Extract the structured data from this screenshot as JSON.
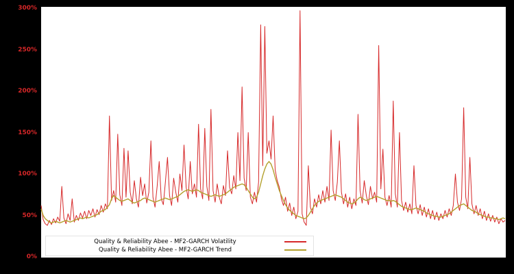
{
  "chart_data": {
    "type": "line",
    "title": "",
    "xlabel": "",
    "ylabel": "",
    "ylim": [
      0,
      300
    ],
    "grid": false,
    "legend_position": "lower-left-inside",
    "y_ticks": [
      0,
      50,
      100,
      150,
      200,
      250,
      300
    ],
    "y_tick_labels": [
      "0%",
      "50%",
      "100%",
      "150%",
      "200%",
      "250%",
      "300%"
    ],
    "colors": {
      "volatility": "#d62728",
      "trend": "#b3a02c",
      "tick_label": "#d62728",
      "plot_bg": "#ffffff",
      "page_bg": "#000000",
      "legend_bg": "#ffffff",
      "legend_text": "#000000"
    },
    "series": [
      {
        "name": "Quality & Reliability Abee - MF2-GARCH Volatility",
        "color_key": "volatility",
        "values": [
          62,
          45,
          40,
          38,
          44,
          39,
          46,
          41,
          48,
          43,
          85,
          47,
          40,
          52,
          44,
          70,
          42,
          50,
          44,
          53,
          47,
          55,
          46,
          56,
          50,
          58,
          48,
          57,
          51,
          62,
          54,
          64,
          58,
          170,
          68,
          80,
          66,
          148,
          75,
          62,
          131,
          72,
          128,
          78,
          64,
          92,
          70,
          60,
          96,
          74,
          88,
          65,
          78,
          140,
          72,
          60,
          85,
          115,
          70,
          63,
          90,
          120,
          74,
          62,
          95,
          78,
          66,
          100,
          80,
          135,
          84,
          70,
          115,
          76,
          88,
          72,
          160,
          82,
          70,
          155,
          85,
          68,
          178,
          80,
          66,
          88,
          72,
          64,
          86,
          74,
          128,
          84,
          76,
          98,
          82,
          150,
          92,
          205,
          95,
          80,
          150,
          72,
          64,
          78,
          66,
          90,
          280,
          110,
          278,
          125,
          140,
          118,
          170,
          105,
          92,
          84,
          70,
          62,
          72,
          55,
          65,
          50,
          60,
          46,
          55,
          297,
          52,
          42,
          38,
          110,
          60,
          52,
          70,
          60,
          75,
          64,
          80,
          66,
          85,
          68,
          153,
          80,
          68,
          90,
          140,
          78,
          64,
          76,
          60,
          72,
          58,
          70,
          62,
          172,
          80,
          65,
          92,
          74,
          63,
          85,
          70,
          78,
          66,
          255,
          82,
          130,
          72,
          62,
          74,
          60,
          188,
          76,
          60,
          150,
          68,
          56,
          66,
          54,
          64,
          52,
          110,
          62,
          52,
          63,
          50,
          60,
          48,
          58,
          46,
          56,
          45,
          54,
          44,
          52,
          46,
          56,
          48,
          58,
          50,
          62,
          100,
          66,
          56,
          70,
          180,
          72,
          58,
          120,
          64,
          52,
          62,
          50,
          58,
          46,
          55,
          44,
          52,
          43,
          50,
          42,
          48,
          40,
          46,
          42,
          44
        ]
      },
      {
        "name": "Quality & Reliability Abee - MF2-GARCH Trend",
        "color_key": "trend",
        "values": [
          58,
          50,
          46,
          44,
          42,
          41,
          42,
          43,
          42,
          41,
          42,
          43,
          44,
          43,
          42,
          43,
          44,
          45,
          46,
          47,
          46,
          47,
          48,
          47,
          48,
          49,
          50,
          51,
          53,
          55,
          56,
          57,
          60,
          63,
          70,
          74,
          72,
          70,
          68,
          67,
          68,
          69,
          70,
          68,
          66,
          65,
          66,
          67,
          68,
          70,
          71,
          70,
          69,
          68,
          67,
          66,
          67,
          68,
          69,
          70,
          71,
          70,
          69,
          70,
          71,
          72,
          73,
          75,
          77,
          79,
          80,
          81,
          80,
          79,
          80,
          81,
          80,
          78,
          77,
          76,
          75,
          74,
          73,
          74,
          75,
          74,
          73,
          74,
          75,
          76,
          78,
          80,
          82,
          84,
          85,
          86,
          87,
          88,
          87,
          84,
          80,
          76,
          72,
          70,
          72,
          78,
          88,
          98,
          106,
          112,
          115,
          112,
          105,
          96,
          88,
          80,
          74,
          68,
          63,
          59,
          56,
          54,
          52,
          50,
          49,
          48,
          47,
          46,
          47,
          50,
          54,
          58,
          62,
          65,
          67,
          68,
          69,
          70,
          71,
          72,
          73,
          74,
          75,
          74,
          73,
          72,
          70,
          68,
          66,
          65,
          64,
          65,
          67,
          70,
          72,
          71,
          69,
          68,
          69,
          70,
          71,
          72,
          73,
          72,
          71,
          70,
          69,
          68,
          68,
          67,
          68,
          67,
          65,
          63,
          61,
          60,
          59,
          58,
          57,
          57,
          58,
          59,
          58,
          57,
          56,
          55,
          53,
          52,
          51,
          50,
          49,
          49,
          48,
          48,
          49,
          50,
          51,
          52,
          54,
          56,
          58,
          60,
          62,
          63,
          64,
          62,
          60,
          58,
          56,
          55,
          54,
          52,
          51,
          50,
          49,
          48,
          48,
          47,
          47,
          46,
          46,
          45,
          46,
          47,
          46
        ]
      }
    ]
  }
}
